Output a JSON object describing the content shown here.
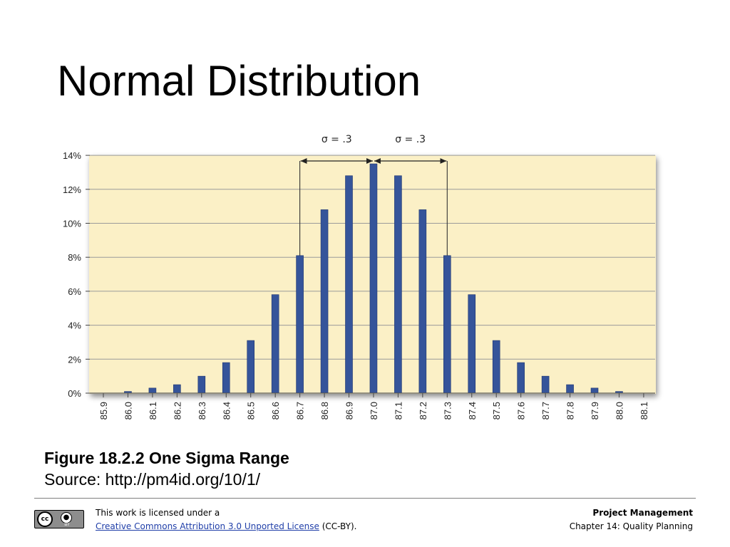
{
  "slide": {
    "title": "Normal Distribution"
  },
  "caption": {
    "title": "Figure 18.2.2 One Sigma Range",
    "source": "Source: http://pm4id.org/10/1/"
  },
  "footer": {
    "license_prefix": "This work is licensed under a",
    "license_link": "Creative Commons Attribution 3.0 Unported License",
    "license_suffix": " (CC-BY).",
    "course_title": "Project Management",
    "chapter": "Chapter 14: Quality Planning",
    "badge_cc": "cc",
    "badge_by": "BY"
  },
  "colors": {
    "bar": "#35549a",
    "plot_background": "#fbf0c6",
    "gridline": "#9a9a9a",
    "footer_link": "#1f3ea8"
  },
  "chart_data": {
    "type": "bar",
    "categories": [
      "85.9",
      "86.0",
      "86.1",
      "86.2",
      "86.3",
      "86.4",
      "86.5",
      "86.6",
      "86.7",
      "86.8",
      "86.9",
      "87.0",
      "87.1",
      "87.2",
      "87.3",
      "87.4",
      "87.5",
      "87.6",
      "87.7",
      "87.8",
      "87.9",
      "88.0",
      "88.1"
    ],
    "values": [
      0,
      0.1,
      0.3,
      0.5,
      1.0,
      1.8,
      3.1,
      5.8,
      8.1,
      10.8,
      12.8,
      13.5,
      12.8,
      10.8,
      8.1,
      5.8,
      3.1,
      1.8,
      1.0,
      0.5,
      0.3,
      0.1,
      0
    ],
    "ylim": [
      0,
      14
    ],
    "yticks": [
      "0%",
      "2%",
      "4%",
      "6%",
      "8%",
      "10%",
      "12%",
      "14%"
    ],
    "ytick_values": [
      0,
      2,
      4,
      6,
      8,
      10,
      12,
      14
    ],
    "grid": true,
    "annotations": [
      {
        "label": "σ = .3",
        "from": 86.7,
        "to": 87.0
      },
      {
        "label": "σ = .3",
        "from": 87.0,
        "to": 87.3
      }
    ]
  }
}
